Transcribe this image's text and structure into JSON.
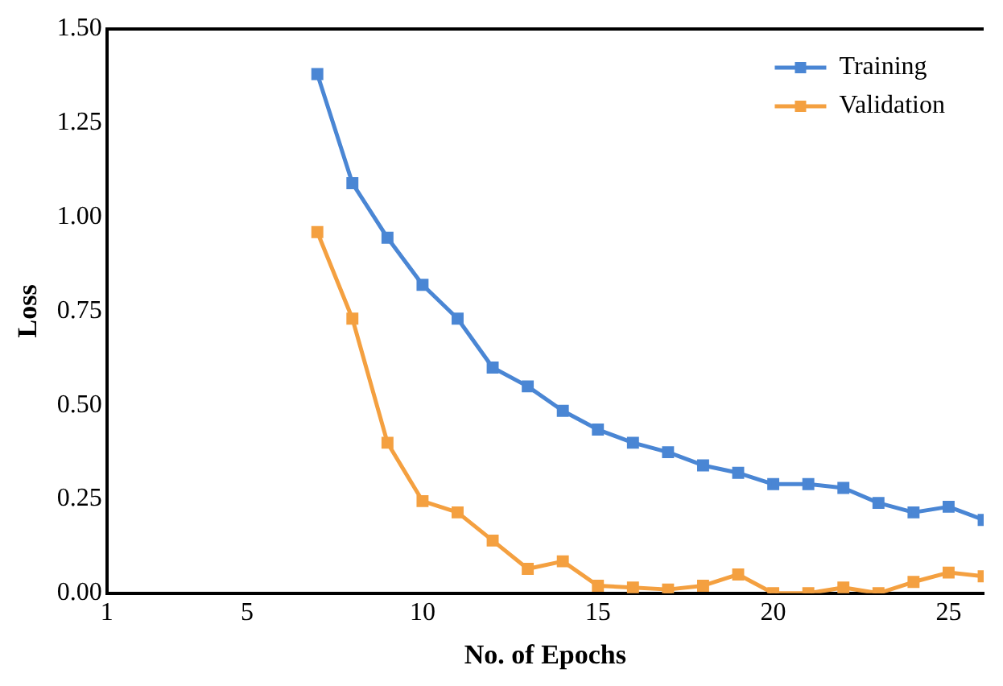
{
  "chart_data": {
    "type": "line",
    "xlabel": "No. of Epochs",
    "ylabel": "Loss",
    "x": [
      7,
      8,
      9,
      10,
      11,
      12,
      13,
      14,
      15,
      16,
      17,
      18,
      19,
      20,
      21,
      22,
      23,
      24,
      25,
      26
    ],
    "series": [
      {
        "name": "Training",
        "color": "#4a86d4",
        "values": [
          1.38,
          1.09,
          0.945,
          0.82,
          0.73,
          0.6,
          0.55,
          0.485,
          0.435,
          0.4,
          0.375,
          0.34,
          0.32,
          0.29,
          0.29,
          0.28,
          0.24,
          0.215,
          0.23,
          0.195
        ]
      },
      {
        "name": "Validation",
        "color": "#f4a040",
        "values": [
          0.96,
          0.73,
          0.4,
          0.245,
          0.215,
          0.14,
          0.065,
          0.085,
          0.02,
          0.015,
          0.01,
          0.02,
          0.05,
          0.0,
          0.0,
          0.015,
          0.0,
          0.03,
          0.055,
          0.045
        ]
      }
    ],
    "xlim": [
      1,
      26
    ],
    "xticks": [
      1,
      5,
      10,
      15,
      20,
      25
    ],
    "ylim": [
      0,
      1.5
    ],
    "yticks": [
      {
        "value": 0,
        "label": "0.00"
      },
      {
        "value": 0.25,
        "label": "0.25"
      },
      {
        "value": 0.5,
        "label": "0.50"
      },
      {
        "value": 0.75,
        "label": "0.75"
      },
      {
        "value": 1,
        "label": "1.00"
      },
      {
        "value": 1.25,
        "label": "1.25"
      },
      {
        "value": 1.5,
        "label": "1.50"
      }
    ],
    "grid": false,
    "legend": "top right",
    "marker": "square",
    "line_style": "solid"
  }
}
